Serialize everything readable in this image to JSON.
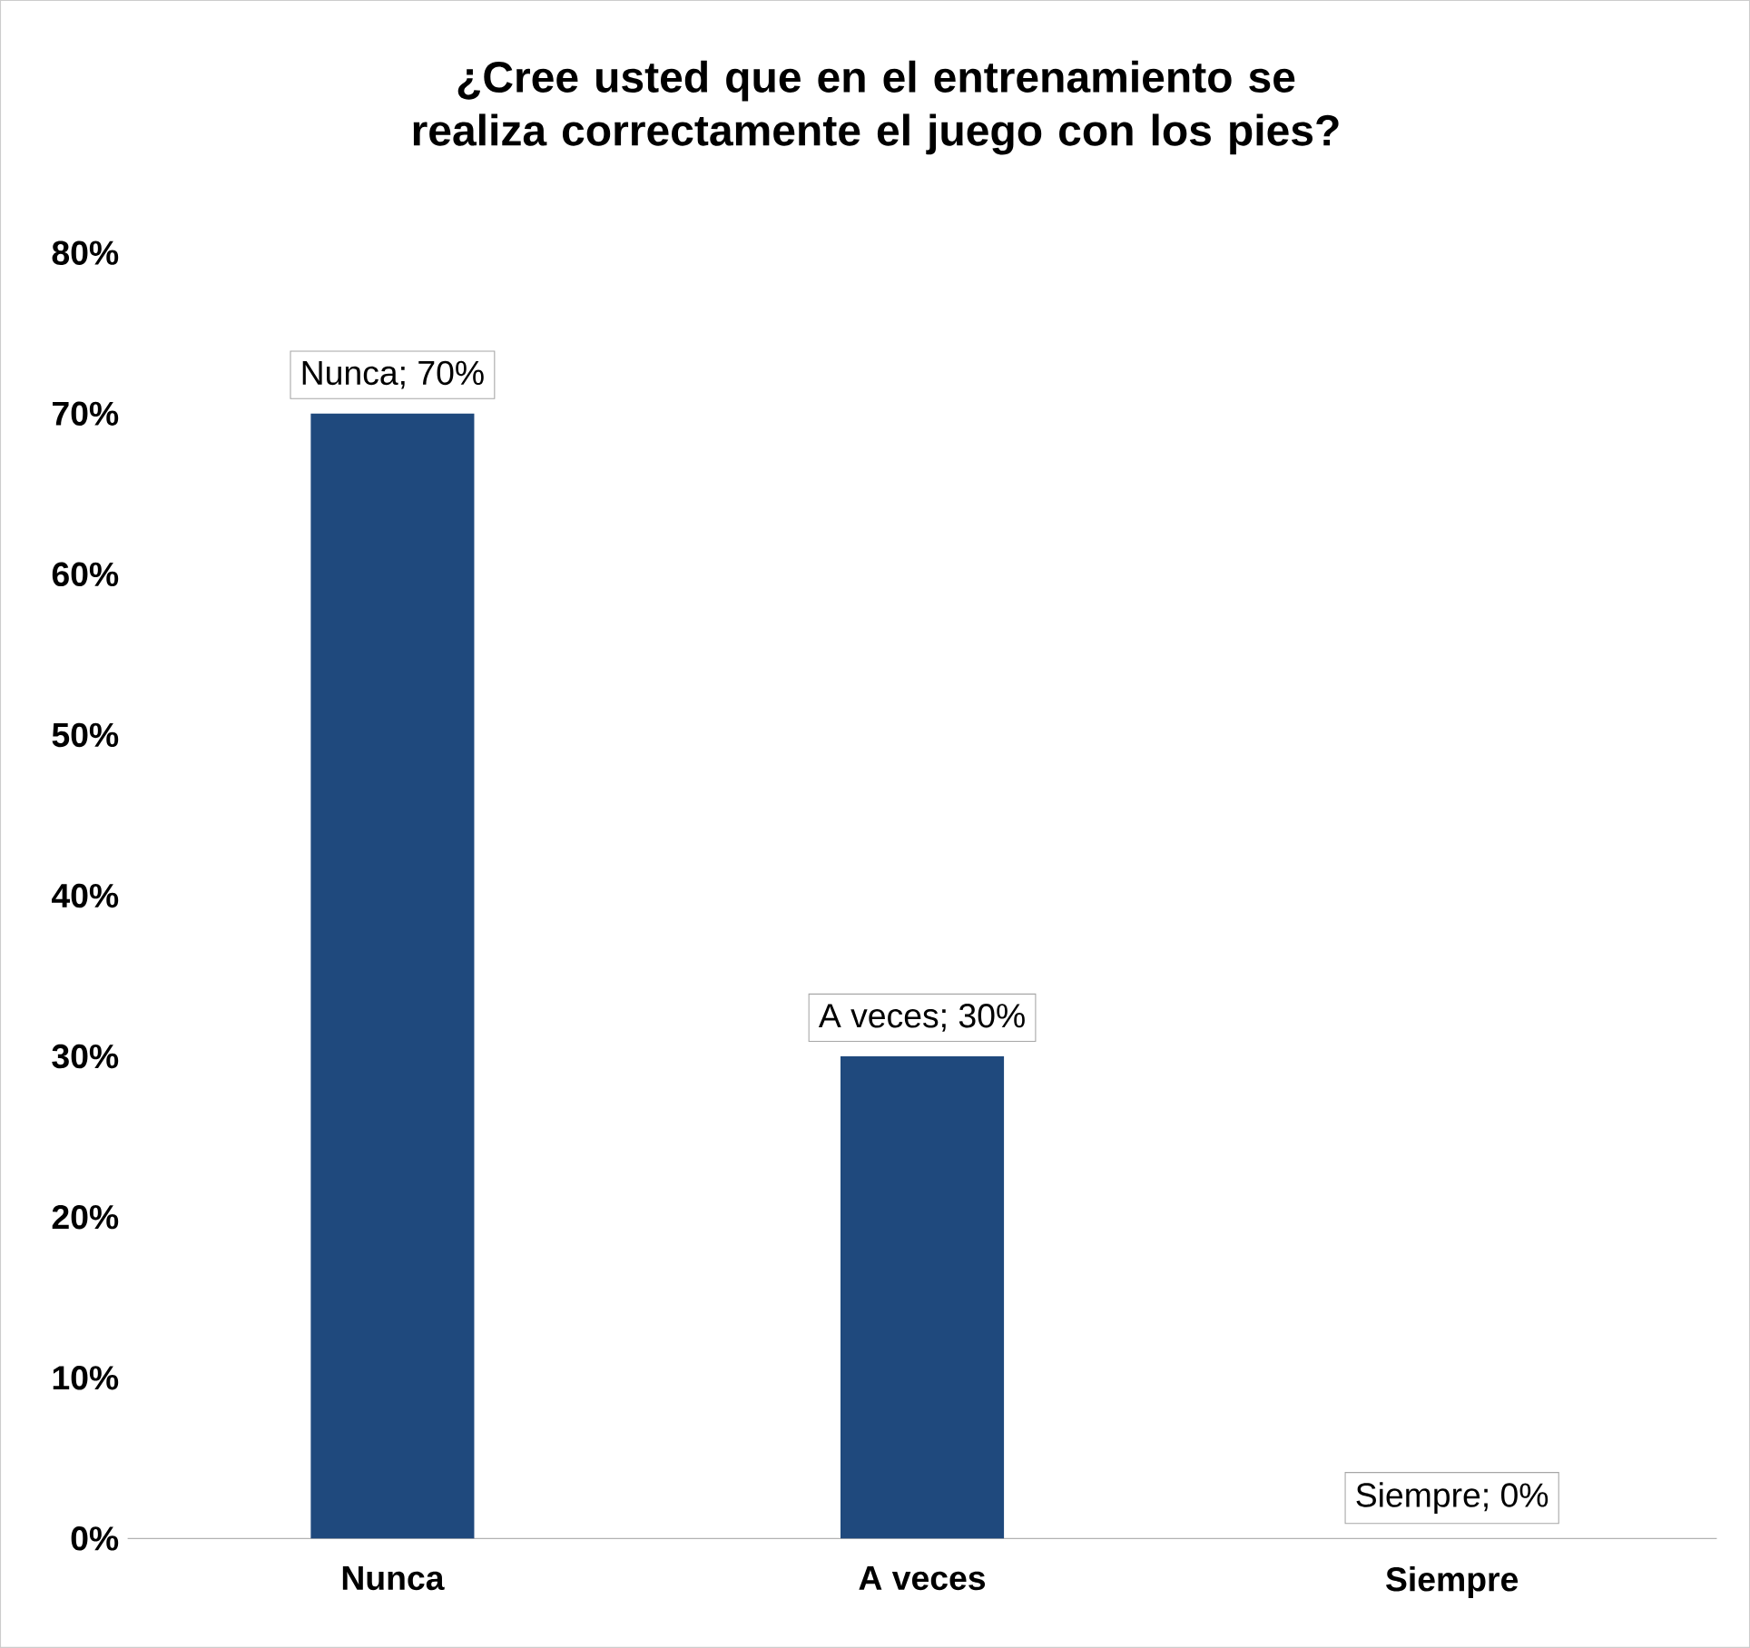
{
  "chart_data": {
    "type": "bar",
    "title": "¿Cree usted que en el entrenamiento se realiza correctamente el juego con los pies?",
    "categories": [
      "Nunca",
      "A veces",
      "Siempre"
    ],
    "values": [
      70,
      30,
      0
    ],
    "color": "#1f497d",
    "value_labels": [
      "Nunca; 70%",
      "A veces; 30%",
      "Siempre; 0%"
    ],
    "ylim": [
      0,
      80
    ],
    "yticks": [
      {
        "value": 0,
        "label": "0%"
      },
      {
        "value": 10,
        "label": "10%"
      },
      {
        "value": 20,
        "label": "20%"
      },
      {
        "value": 30,
        "label": "30%"
      },
      {
        "value": 40,
        "label": "40%"
      },
      {
        "value": 50,
        "label": "50%"
      },
      {
        "value": 60,
        "label": "60%"
      },
      {
        "value": 70,
        "label": "70%"
      },
      {
        "value": 80,
        "label": "80%"
      }
    ]
  }
}
